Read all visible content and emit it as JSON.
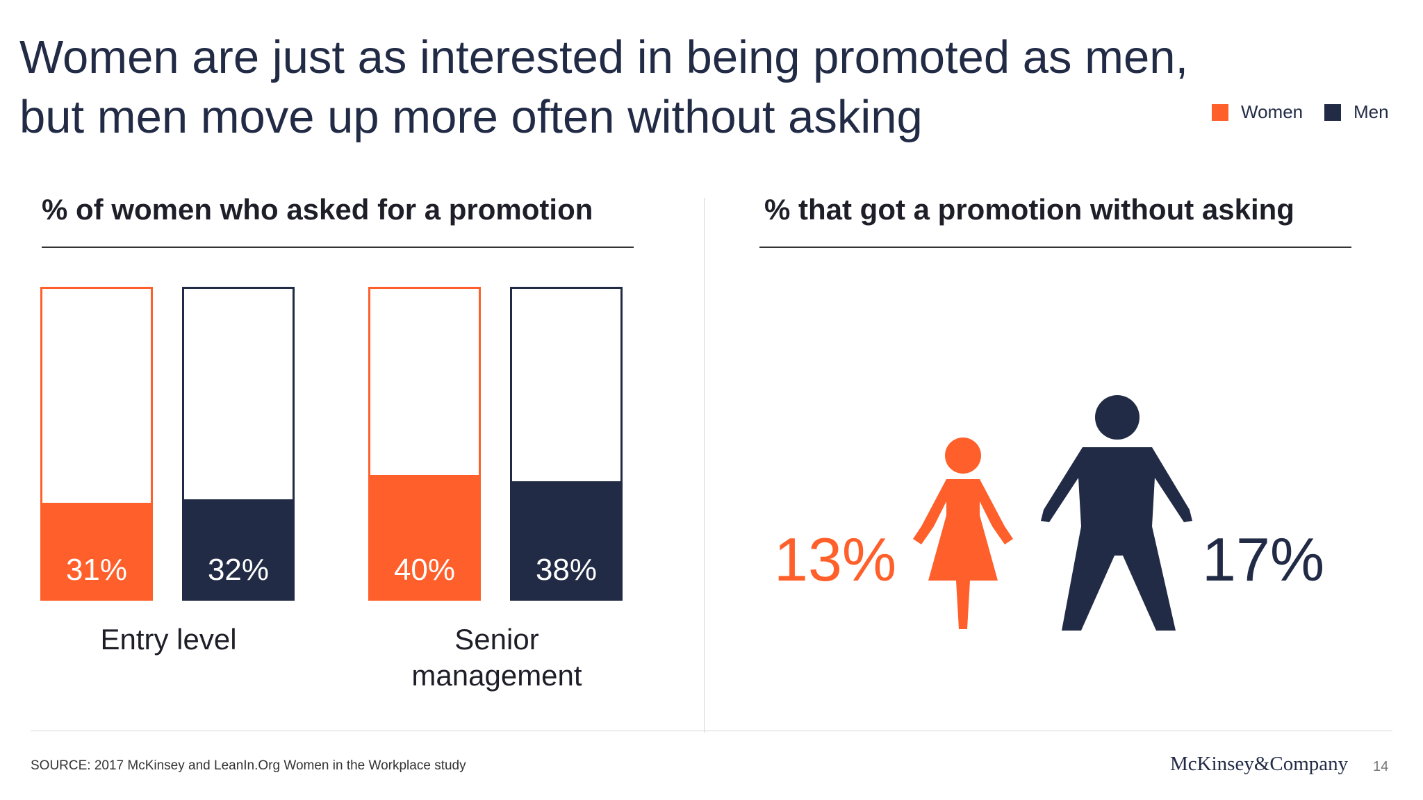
{
  "title": "Women are just as interested in being promoted as men, but men move up more often without asking",
  "legend": [
    {
      "label": "Women",
      "color": "#ff5f2a"
    },
    {
      "label": "Men",
      "color": "#222b45"
    }
  ],
  "left_panel": {
    "heading": "% of women who asked for a promotion"
  },
  "right_panel": {
    "heading": "% that got a promotion without asking",
    "women_value": "13%",
    "men_value": "17%"
  },
  "chart_data": [
    {
      "type": "bar",
      "title": "% of women who asked for a promotion",
      "categories": [
        "Entry level",
        "Senior management"
      ],
      "series": [
        {
          "name": "Women",
          "values": [
            31,
            40
          ],
          "labels": [
            "31%",
            "40%"
          ],
          "color": "#ff5f2a"
        },
        {
          "name": "Men",
          "values": [
            32,
            38
          ],
          "labels": [
            "32%",
            "38%"
          ],
          "color": "#222b45"
        }
      ],
      "ylim": [
        0,
        100
      ]
    },
    {
      "type": "pictograph",
      "title": "% that got a promotion without asking",
      "series": [
        {
          "name": "Women",
          "values": [
            13
          ],
          "labels": [
            "13%"
          ],
          "color": "#ff5f2a"
        },
        {
          "name": "Men",
          "values": [
            17
          ],
          "labels": [
            "17%"
          ],
          "color": "#222b45"
        }
      ]
    }
  ],
  "footer": {
    "source": "SOURCE: 2017 McKinsey and LeanIn.Org Women in the Workplace study",
    "logo": "McKinsey&Company",
    "page": "14"
  }
}
